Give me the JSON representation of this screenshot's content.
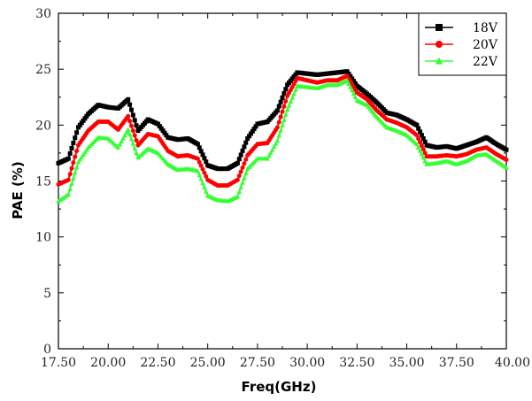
{
  "chart_data": {
    "type": "line",
    "title": "",
    "xlabel": "Freq(GHz)",
    "ylabel": "PAE (%)",
    "xlim": [
      17.5,
      40.0
    ],
    "ylim": [
      0,
      30
    ],
    "x_ticks": [
      "17.50",
      "20.00",
      "22.50",
      "25.00",
      "27.50",
      "30.00",
      "32.50",
      "35.00",
      "37.50",
      "40.00"
    ],
    "y_ticks": [
      "0",
      "5",
      "10",
      "15",
      "20",
      "25",
      "30"
    ],
    "grid": false,
    "legend_position": "top-right",
    "x": [
      17.5,
      18.0,
      18.5,
      19.0,
      19.5,
      20.0,
      20.5,
      21.0,
      21.5,
      22.0,
      22.5,
      23.0,
      23.5,
      24.0,
      24.5,
      25.0,
      25.5,
      26.0,
      26.5,
      27.0,
      27.5,
      28.0,
      28.5,
      29.0,
      29.5,
      30.0,
      30.5,
      31.0,
      31.5,
      32.0,
      32.5,
      33.0,
      33.5,
      34.0,
      34.5,
      35.0,
      35.5,
      36.0,
      36.5,
      37.0,
      37.5,
      38.0,
      38.5,
      39.0,
      39.5,
      40.0
    ],
    "series": [
      {
        "name": "18V",
        "color": "#000000",
        "marker": "square",
        "values": [
          16.6,
          17.0,
          19.8,
          21.0,
          21.8,
          21.6,
          21.5,
          22.3,
          19.5,
          20.5,
          20.1,
          18.9,
          18.7,
          18.8,
          18.3,
          16.4,
          16.1,
          16.1,
          16.6,
          18.8,
          20.1,
          20.3,
          21.3,
          23.6,
          24.7,
          24.6,
          24.5,
          24.6,
          24.7,
          24.8,
          23.5,
          22.8,
          22.0,
          21.1,
          20.9,
          20.5,
          20.0,
          18.2,
          18.0,
          18.1,
          17.9,
          18.2,
          18.5,
          18.9,
          18.3,
          17.8
        ]
      },
      {
        "name": "20V",
        "color": "#ff0000",
        "marker": "circle",
        "values": [
          14.7,
          15.1,
          18.2,
          19.5,
          20.3,
          20.3,
          19.6,
          20.8,
          18.2,
          19.2,
          19.0,
          17.7,
          17.2,
          17.3,
          17.0,
          15.1,
          14.6,
          14.6,
          15.1,
          17.3,
          18.3,
          18.4,
          19.8,
          22.6,
          24.2,
          24.0,
          23.8,
          24.0,
          24.0,
          24.4,
          22.9,
          22.3,
          21.3,
          20.5,
          20.2,
          19.8,
          19.1,
          17.2,
          17.2,
          17.3,
          17.2,
          17.4,
          17.8,
          18.0,
          17.4,
          16.9
        ]
      },
      {
        "name": "22V",
        "color": "#33ff33",
        "marker": "triangle",
        "values": [
          13.2,
          13.8,
          16.7,
          18.0,
          18.9,
          18.8,
          18.0,
          19.6,
          17.1,
          17.9,
          17.5,
          16.5,
          16.0,
          16.1,
          15.9,
          13.7,
          13.3,
          13.2,
          13.6,
          16.1,
          17.0,
          17.0,
          18.6,
          21.4,
          23.5,
          23.4,
          23.3,
          23.6,
          23.6,
          24.0,
          22.2,
          21.8,
          20.7,
          19.8,
          19.5,
          19.1,
          18.3,
          16.5,
          16.6,
          16.8,
          16.5,
          16.8,
          17.3,
          17.4,
          16.8,
          16.2
        ]
      }
    ]
  }
}
